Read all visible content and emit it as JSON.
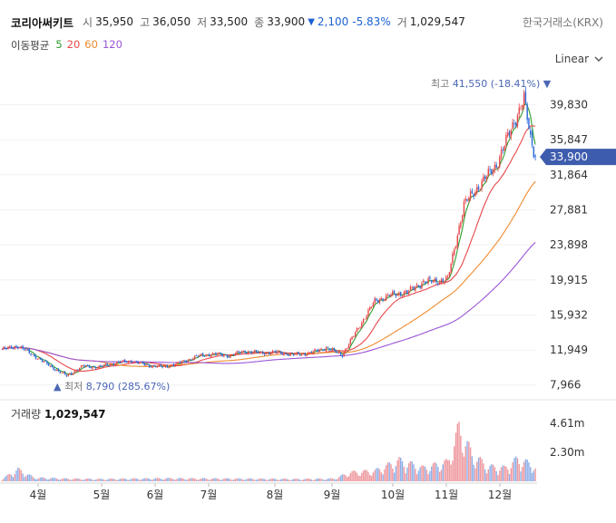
{
  "header": {
    "name": "코리아써키트",
    "open_label": "시",
    "open": "35,950",
    "high_label": "고",
    "high": "36,050",
    "low_label": "저",
    "low": "33,500",
    "close_label": "종",
    "close": "33,900",
    "change_arrow": "▼",
    "change": "2,100",
    "change_pct": "-5.83%",
    "volume_label": "거",
    "volume": "1,029,547",
    "exchange": "한국거래소(KRX)"
  },
  "ma_legend": {
    "title": "이동평균",
    "items": [
      {
        "label": "5",
        "color": "#2e9e2e"
      },
      {
        "label": "20",
        "color": "#e8474a"
      },
      {
        "label": "60",
        "color": "#ef8a2e"
      },
      {
        "label": "120",
        "color": "#9a55d6"
      }
    ]
  },
  "scale_button": {
    "label": "Linear"
  },
  "volume_panel": {
    "title": "거래량",
    "value": "1,029,547"
  },
  "colors": {
    "up": "#e8474a",
    "down": "#2b6ad8",
    "current_tag": "#3e5cad"
  },
  "chart_data": {
    "type": "candlestick",
    "price_axis": {
      "ticks": [
        39830,
        35847,
        31864,
        27881,
        23898,
        19915,
        15932,
        11949,
        7966
      ],
      "tick_labels": [
        "39,830",
        "35,847",
        "31,864",
        "27,881",
        "23,898",
        "19,915",
        "15,932",
        "11,949",
        "7,966"
      ],
      "ylim": [
        6600,
        43500
      ]
    },
    "volume_axis": {
      "ticks": [
        4610000,
        2300000
      ],
      "tick_labels": [
        "4.61m",
        "2.30m"
      ],
      "ylim": [
        0,
        6200000
      ]
    },
    "x_labels": [
      "4월",
      "5월",
      "6월",
      "7월",
      "8월",
      "9월",
      "10월",
      "11월",
      "12월"
    ],
    "current_price": {
      "value": 33900,
      "label": "33,900"
    },
    "max_annotation": {
      "label": "최고",
      "value": "41,550",
      "pct": "(-18.41%)",
      "arrow": "▼"
    },
    "min_annotation": {
      "label": "최저",
      "value": "8,790",
      "pct": "(285.67%)",
      "arrow": "▲"
    },
    "close_path": [
      {
        "t": 0,
        "p": 12000
      },
      {
        "t": 10,
        "p": 12400
      },
      {
        "t": 20,
        "p": 11300
      },
      {
        "t": 30,
        "p": 10100
      },
      {
        "t": 40,
        "p": 9000
      },
      {
        "t": 50,
        "p": 10100
      },
      {
        "t": 60,
        "p": 10000
      },
      {
        "t": 70,
        "p": 10500
      },
      {
        "t": 80,
        "p": 10700
      },
      {
        "t": 90,
        "p": 10200
      },
      {
        "t": 100,
        "p": 10000
      },
      {
        "t": 110,
        "p": 10500
      },
      {
        "t": 120,
        "p": 11200
      },
      {
        "t": 130,
        "p": 11500
      },
      {
        "t": 140,
        "p": 11300
      },
      {
        "t": 150,
        "p": 11800
      },
      {
        "t": 160,
        "p": 11600
      },
      {
        "t": 170,
        "p": 11700
      },
      {
        "t": 180,
        "p": 11400
      },
      {
        "t": 190,
        "p": 11600
      },
      {
        "t": 200,
        "p": 12200
      },
      {
        "t": 210,
        "p": 11400
      },
      {
        "t": 220,
        "p": 14500
      },
      {
        "t": 230,
        "p": 17500
      },
      {
        "t": 240,
        "p": 18200
      },
      {
        "t": 250,
        "p": 18500
      },
      {
        "t": 260,
        "p": 19700
      },
      {
        "t": 270,
        "p": 19800
      },
      {
        "t": 275,
        "p": 20000
      },
      {
        "t": 285,
        "p": 28500
      },
      {
        "t": 295,
        "p": 30800
      },
      {
        "t": 305,
        "p": 33000
      },
      {
        "t": 315,
        "p": 37500
      },
      {
        "t": 322,
        "p": 40500
      },
      {
        "t": 326,
        "p": 36000
      },
      {
        "t": 329,
        "p": 33900
      }
    ],
    "volume_profile": [
      {
        "t": 0,
        "v": 150000
      },
      {
        "t": 10,
        "v": 800000
      },
      {
        "t": 20,
        "v": 250000
      },
      {
        "t": 40,
        "v": 180000
      },
      {
        "t": 60,
        "v": 150000
      },
      {
        "t": 100,
        "v": 200000
      },
      {
        "t": 140,
        "v": 180000
      },
      {
        "t": 180,
        "v": 150000
      },
      {
        "t": 205,
        "v": 180000
      },
      {
        "t": 215,
        "v": 600000
      },
      {
        "t": 230,
        "v": 700000
      },
      {
        "t": 245,
        "v": 1400000
      },
      {
        "t": 260,
        "v": 900000
      },
      {
        "t": 275,
        "v": 1300000
      },
      {
        "t": 282,
        "v": 3600000
      },
      {
        "t": 290,
        "v": 1800000
      },
      {
        "t": 300,
        "v": 1000000
      },
      {
        "t": 310,
        "v": 900000
      },
      {
        "t": 318,
        "v": 1500000
      },
      {
        "t": 329,
        "v": 1029547
      }
    ]
  }
}
